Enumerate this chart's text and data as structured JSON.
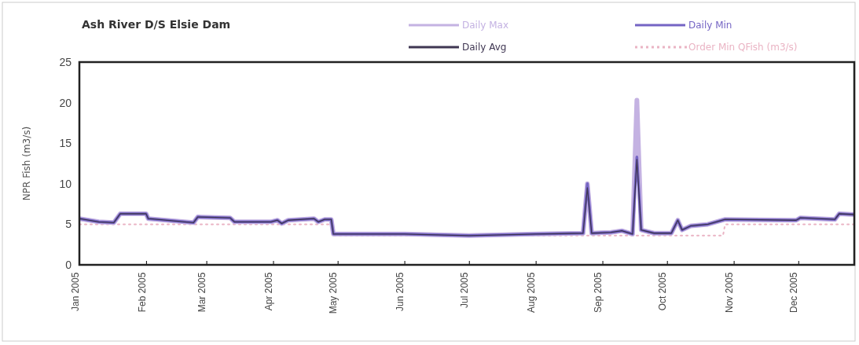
{
  "chart_data": {
    "type": "line",
    "title": "Ash River D/S Elsie Dam",
    "ylabel": "NPR Fish (m3/s)",
    "x": [
      "2005-01-01",
      "2005-01-10",
      "2005-01-17",
      "2005-01-20",
      "2005-02-01",
      "2005-02-02",
      "2005-02-23",
      "2005-02-25",
      "2005-03-12",
      "2005-03-14",
      "2005-03-31",
      "2005-04-03",
      "2005-04-05",
      "2005-04-08",
      "2005-04-20",
      "2005-04-22",
      "2005-04-25",
      "2005-04-28",
      "2005-04-29",
      "2005-06-01",
      "2005-07-01",
      "2005-08-01",
      "2005-08-23",
      "2005-08-25",
      "2005-08-27",
      "2005-09-05",
      "2005-09-10",
      "2005-09-15",
      "2005-09-17",
      "2005-09-19",
      "2005-09-25",
      "2005-10-03",
      "2005-10-06",
      "2005-10-08",
      "2005-10-12",
      "2005-10-20",
      "2005-10-28",
      "2005-11-30",
      "2005-12-02",
      "2005-12-18",
      "2005-12-20",
      "2005-12-27"
    ],
    "series": [
      {
        "name": "Daily Max",
        "color": "#c4b2e2",
        "values": [
          5.7,
          5.3,
          5.2,
          6.3,
          6.3,
          5.7,
          5.2,
          5.9,
          5.8,
          5.3,
          5.3,
          5.5,
          5.1,
          5.5,
          5.7,
          5.3,
          5.6,
          5.6,
          3.8,
          3.8,
          3.6,
          3.8,
          3.9,
          10,
          3.9,
          4.0,
          4.2,
          3.8,
          20.3,
          4.3,
          3.9,
          3.9,
          5.5,
          4.3,
          4.8,
          5.0,
          5.6,
          5.5,
          5.8,
          5.6,
          6.3,
          6.2
        ]
      },
      {
        "name": "Daily Min",
        "color": "#7565c4",
        "values": [
          5.7,
          5.3,
          5.2,
          6.3,
          6.3,
          5.7,
          5.2,
          5.9,
          5.8,
          5.3,
          5.3,
          5.5,
          5.1,
          5.5,
          5.7,
          5.3,
          5.6,
          5.6,
          3.8,
          3.8,
          3.6,
          3.8,
          3.9,
          10,
          3.9,
          4.0,
          4.2,
          3.8,
          13.3,
          4.3,
          3.9,
          3.9,
          5.5,
          4.3,
          4.8,
          5.0,
          5.6,
          5.5,
          5.8,
          5.6,
          6.3,
          6.2
        ]
      },
      {
        "name": "Daily Avg",
        "color": "#3f3652",
        "values": [
          5.7,
          5.3,
          5.2,
          6.3,
          6.3,
          5.7,
          5.2,
          5.9,
          5.8,
          5.3,
          5.3,
          5.5,
          5.1,
          5.5,
          5.7,
          5.3,
          5.6,
          5.6,
          3.8,
          3.8,
          3.6,
          3.8,
          3.9,
          9.5,
          3.9,
          4.0,
          4.2,
          3.8,
          13,
          4.3,
          3.9,
          3.9,
          5.5,
          4.3,
          4.8,
          5.0,
          5.6,
          5.5,
          5.8,
          5.6,
          6.3,
          6.2
        ]
      },
      {
        "name": "Order Min QFish (m3/s)",
        "color": "#eab4c4",
        "line_style": "dotted",
        "x": [
          "2005-01-01",
          "2005-04-28",
          "2005-04-29",
          "2005-10-27",
          "2005-10-28",
          "2005-12-27"
        ],
        "values": [
          5,
          5,
          3.6,
          3.6,
          5,
          5
        ]
      }
    ],
    "xlim": [
      "2005-01-01",
      "2005-12-27"
    ],
    "xticks": [
      {
        "value": "2005-01-01",
        "label": "Jan 2005"
      },
      {
        "value": "2005-02-01",
        "label": "Feb 2005"
      },
      {
        "value": "2005-03-01",
        "label": "Mar 2005"
      },
      {
        "value": "2005-04-01",
        "label": "Apr 2005"
      },
      {
        "value": "2005-05-01",
        "label": "May 2005"
      },
      {
        "value": "2005-06-01",
        "label": "Jun 2005"
      },
      {
        "value": "2005-07-01",
        "label": "Jul 2005"
      },
      {
        "value": "2005-08-01",
        "label": "Aug 2005"
      },
      {
        "value": "2005-09-01",
        "label": "Sep 2005"
      },
      {
        "value": "2005-10-01",
        "label": "Oct 2005"
      },
      {
        "value": "2005-11-01",
        "label": "Nov 2005"
      },
      {
        "value": "2005-12-01",
        "label": "Dec 2005"
      }
    ],
    "ylim": [
      0,
      25
    ],
    "yticks": [
      0,
      5,
      10,
      15,
      20,
      25
    ],
    "legend": "top right",
    "line_style": "solid"
  }
}
